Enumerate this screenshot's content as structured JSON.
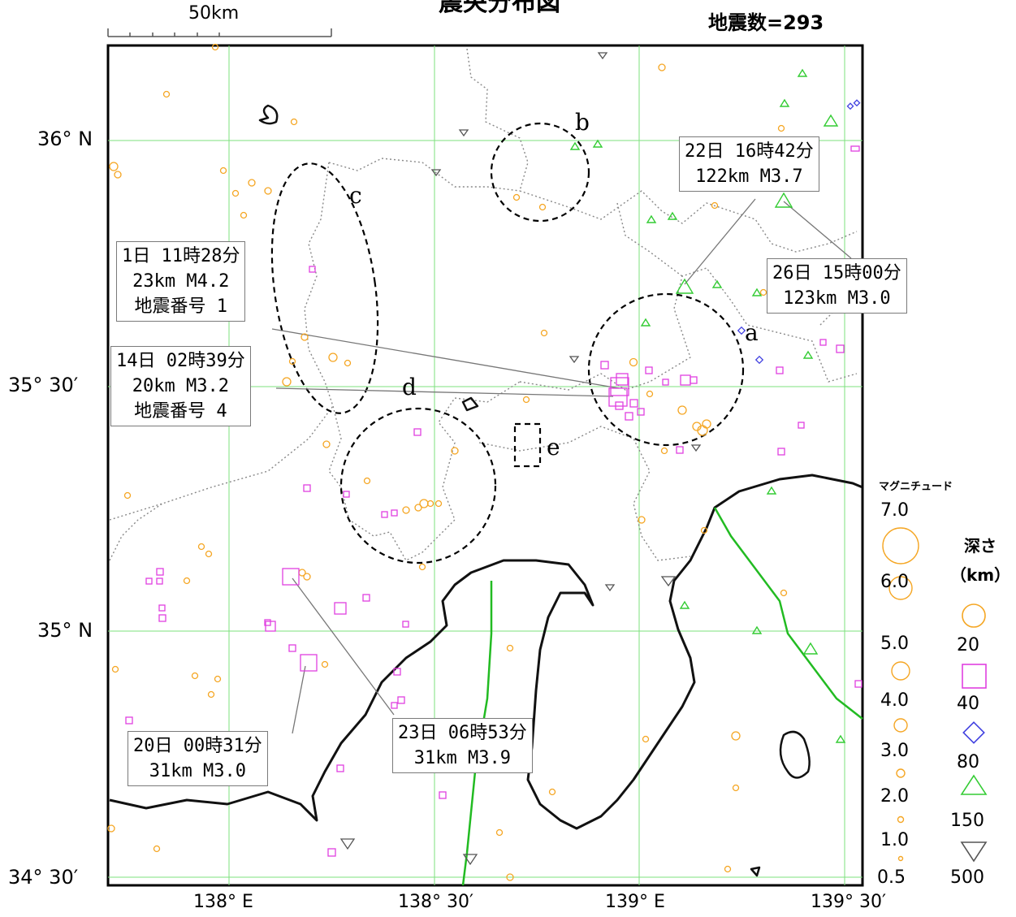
{
  "header": {
    "title": "震央分布図",
    "count": "地震数=293",
    "scale_label": "50km"
  },
  "axes": {
    "lat_labels": [
      "36° N",
      "35° 30′",
      "35° N",
      "34° 30′"
    ],
    "lon_labels": [
      "138° E",
      "138° 30′",
      "139° E",
      "139° 30′"
    ]
  },
  "callouts": {
    "c1": [
      "22日 16時42分",
      "122km M3.7"
    ],
    "c2": [
      "26日 15時00分",
      "123km M3.0"
    ],
    "c3": [
      "1日 11時28分",
      "23km M4.2",
      "地震番号 1"
    ],
    "c4": [
      "14日 02時39分",
      "20km M3.2",
      "地震番号 4"
    ],
    "c5": [
      "20日 00時31分",
      "31km M3.0"
    ],
    "c6": [
      "23日 06時53分",
      "31km M3.9"
    ]
  },
  "regions": {
    "a": "a",
    "b": "b",
    "c": "c",
    "d": "d",
    "e": "e"
  },
  "legend": {
    "magnitude_title": "マグニチュード",
    "magnitudes": [
      "7.0",
      "6.0",
      "5.0",
      "4.0",
      "3.0",
      "2.0",
      "1.0",
      "0.5"
    ],
    "depth_title": "深さ",
    "depth_unit": "（km）",
    "depths": [
      "20",
      "40",
      "80",
      "150",
      "500"
    ],
    "colors": {
      "d20": "#f5a623",
      "d40": "#e040e0",
      "d80": "#4040e0",
      "d150": "#33cc33",
      "d500": "#555555",
      "grid": "#7ee07e"
    }
  }
}
